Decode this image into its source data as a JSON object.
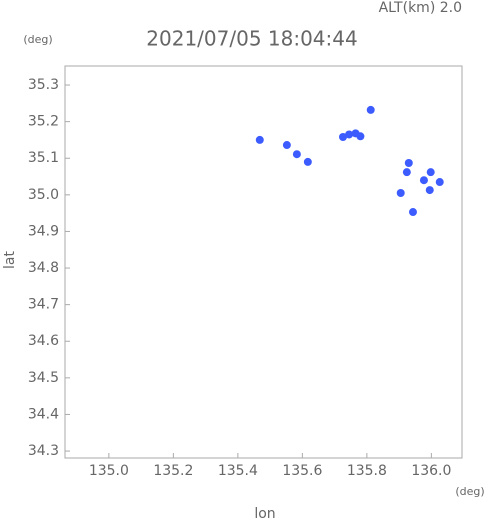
{
  "chart_data": {
    "type": "scatter",
    "title": "2021/07/05 18:04:44",
    "subtitle": "ALT(km) 2.0",
    "x_label": "lon",
    "y_label": "lat",
    "x_unit": "(deg)",
    "y_unit": "(deg)",
    "color": "#3d5cff",
    "x": [
      135.468,
      135.552,
      135.583,
      135.617,
      135.726,
      135.745,
      135.765,
      135.78,
      135.812,
      135.93,
      135.924,
      135.977,
      135.998,
      136.026,
      135.995,
      135.905,
      135.943
    ],
    "values": [
      35.15,
      35.136,
      35.111,
      35.09,
      35.158,
      35.165,
      35.168,
      35.16,
      35.232,
      35.087,
      35.062,
      35.04,
      35.062,
      35.035,
      35.013,
      35.005,
      34.953
    ],
    "xlim": [
      134.864,
      136.095
    ],
    "ylim": [
      34.281,
      35.352
    ],
    "xticks": [
      {
        "value": 135,
        "label": "135.0"
      },
      135.2,
      135.4,
      135.6,
      135.8,
      {
        "value": 136,
        "label": "136.0"
      }
    ],
    "yticks": [
      34.3,
      34.4,
      34.5,
      34.6,
      34.7,
      34.8,
      34.9,
      {
        "value": 35,
        "label": "35.0"
      },
      35.1,
      35.2,
      35.3
    ]
  }
}
